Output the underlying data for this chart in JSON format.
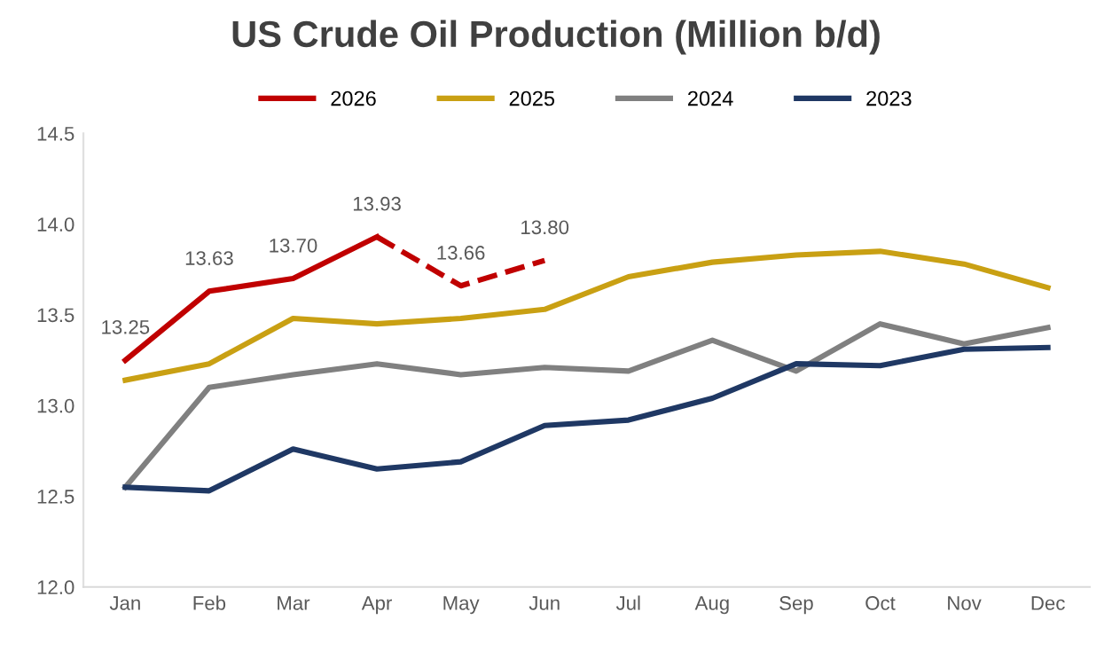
{
  "chart_data": {
    "type": "line",
    "title": "US Crude Oil Production (Million b/d)",
    "categories": [
      "Jan",
      "Feb",
      "Mar",
      "Apr",
      "May",
      "Jun",
      "Jul",
      "Aug",
      "Sep",
      "Oct",
      "Nov",
      "Dec"
    ],
    "series": [
      {
        "name": "2026",
        "color": "#c00000",
        "values": [
          13.25,
          13.63,
          13.7,
          13.93,
          null,
          null,
          null,
          null,
          null,
          null,
          null,
          null
        ],
        "value_labels": [
          "13.25",
          "13.63",
          "13.70",
          "13.93",
          null,
          null,
          null,
          null,
          null,
          null,
          null,
          null
        ]
      },
      {
        "color": "#c00000",
        "line_style": "dashed",
        "values": [
          null,
          null,
          null,
          13.93,
          13.66,
          13.8,
          null,
          null,
          null,
          null,
          null,
          null
        ],
        "value_labels": [
          null,
          null,
          null,
          null,
          "13.66",
          "13.80",
          null,
          null,
          null,
          null,
          null,
          null
        ]
      },
      {
        "name": "2025",
        "color": "#c9a013",
        "values": [
          13.14,
          13.23,
          13.48,
          13.45,
          13.48,
          13.53,
          13.71,
          13.79,
          13.83,
          13.85,
          13.78,
          13.65
        ]
      },
      {
        "name": "2024",
        "color": "#808080",
        "values": [
          12.55,
          13.1,
          13.17,
          13.23,
          13.17,
          13.21,
          13.19,
          13.36,
          13.19,
          13.45,
          13.34,
          13.43
        ]
      },
      {
        "name": "2023",
        "color": "#1f3864",
        "values": [
          12.55,
          12.53,
          12.76,
          12.65,
          12.69,
          12.89,
          12.92,
          13.04,
          13.23,
          13.22,
          13.31,
          13.32
        ]
      }
    ],
    "ylim": [
      12.0,
      14.5
    ],
    "yticks": [
      {
        "value": 12.0,
        "label": "12.0"
      },
      {
        "value": 12.5,
        "label": "12.5"
      },
      {
        "value": 13.0,
        "label": "13.0"
      },
      {
        "value": 13.5,
        "label": "13.5"
      },
      {
        "value": 14.0,
        "label": "14.0"
      },
      {
        "value": 14.5,
        "label": "14.5"
      }
    ],
    "legend": "top",
    "line_style": "solid",
    "marker": "none",
    "grid": false
  }
}
